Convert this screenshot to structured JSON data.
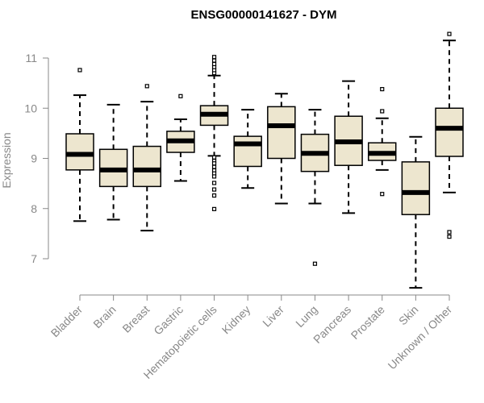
{
  "chart_data": {
    "type": "boxplot",
    "title": "ENSG00000141627 - DYM",
    "xlabel": "",
    "ylabel": "Expression",
    "ylim": [
      6.3,
      11.6
    ],
    "yticks": [
      7,
      8,
      9,
      10,
      11
    ],
    "box_fill": "#ede6cf",
    "categories": [
      "Bladder",
      "Brain",
      "Breast",
      "Gastric",
      "Hematopoietic cells",
      "Kidney",
      "Liver",
      "Lung",
      "Pancreas",
      "Prostate",
      "Skin",
      "Unknown / Other"
    ],
    "boxes": [
      {
        "name": "Bladder",
        "whisker_low": 7.75,
        "q1": 8.77,
        "median": 9.08,
        "q3": 9.49,
        "whisker_high": 10.26,
        "outliers": [
          10.76
        ]
      },
      {
        "name": "Brain",
        "whisker_low": 7.78,
        "q1": 8.44,
        "median": 8.77,
        "q3": 9.18,
        "whisker_high": 10.07,
        "outliers": []
      },
      {
        "name": "Breast",
        "whisker_low": 7.56,
        "q1": 8.44,
        "median": 8.77,
        "q3": 9.24,
        "whisker_high": 10.13,
        "outliers": [
          10.44
        ]
      },
      {
        "name": "Gastric",
        "whisker_low": 8.55,
        "q1": 9.12,
        "median": 9.35,
        "q3": 9.54,
        "whisker_high": 9.78,
        "outliers": [
          10.24
        ]
      },
      {
        "name": "Hematopoietic cells",
        "whisker_low": 9.05,
        "q1": 9.66,
        "median": 9.88,
        "q3": 10.05,
        "whisker_high": 10.65,
        "outliers": [
          10.7,
          10.76,
          10.82,
          10.88,
          10.95,
          11.02,
          9.02,
          8.95,
          8.9,
          8.83,
          8.76,
          8.7,
          8.64,
          8.51,
          8.38,
          8.26,
          7.99
        ]
      },
      {
        "name": "Kidney",
        "whisker_low": 8.41,
        "q1": 8.84,
        "median": 9.29,
        "q3": 9.44,
        "whisker_high": 9.97,
        "outliers": []
      },
      {
        "name": "Liver",
        "whisker_low": 8.1,
        "q1": 9.0,
        "median": 9.65,
        "q3": 10.03,
        "whisker_high": 10.29,
        "outliers": []
      },
      {
        "name": "Lung",
        "whisker_low": 8.1,
        "q1": 8.74,
        "median": 9.1,
        "q3": 9.48,
        "whisker_high": 9.97,
        "outliers": [
          6.9
        ]
      },
      {
        "name": "Pancreas",
        "whisker_low": 7.91,
        "q1": 8.86,
        "median": 9.33,
        "q3": 9.84,
        "whisker_high": 10.54,
        "outliers": []
      },
      {
        "name": "Prostate",
        "whisker_low": 8.77,
        "q1": 8.96,
        "median": 9.1,
        "q3": 9.31,
        "whisker_high": 9.8,
        "outliers": [
          10.38,
          9.94,
          8.29
        ]
      },
      {
        "name": "Skin",
        "whisker_low": 6.42,
        "q1": 7.88,
        "median": 8.32,
        "q3": 8.93,
        "whisker_high": 9.43,
        "outliers": []
      },
      {
        "name": "Unknown / Other",
        "whisker_low": 8.32,
        "q1": 9.04,
        "median": 9.6,
        "q3": 10.0,
        "whisker_high": 11.35,
        "outliers": [
          11.48,
          7.53,
          7.44
        ]
      }
    ]
  }
}
